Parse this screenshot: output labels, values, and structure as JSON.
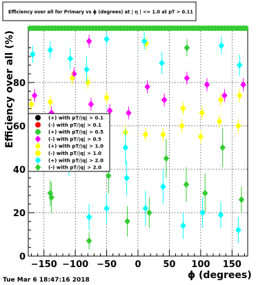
{
  "chart_data": {
    "type": "scatter",
    "title": "Efficiency over all for Primary vs ϕ (degrees) at | η | <= 1.0 at pT > 0.11",
    "xlabel": "ϕ (degrees)",
    "ylabel": "Efficiency over all (%)",
    "xlim": [
      -175,
      175
    ],
    "ylim": [
      0,
      105
    ],
    "x_ticks": [
      -150,
      -100,
      -50,
      0,
      50,
      100,
      150
    ],
    "y_ticks": [
      0,
      20,
      40,
      60,
      80
    ],
    "x_tick_labels": [
      "−150",
      "−100",
      "−50",
      "0",
      "50",
      "100",
      "150"
    ],
    "y_tick_labels": [
      "0",
      "20",
      "40",
      "60",
      "80"
    ],
    "grid": true,
    "legend_position": "middle-left",
    "timestamp": "Tue Mar  6 18:47:16 2018",
    "series": [
      {
        "name": "(+) with pT/|q| > 0.1",
        "color": "#000000",
        "marker": "circle",
        "points": []
      },
      {
        "name": "(-) with pT/|q| > 0.1",
        "color": "#ff0000",
        "marker": "circle",
        "points": []
      },
      {
        "name": "(+) with pT/|q| > 0.5",
        "color": "#33cc33",
        "marker": "circle",
        "points": [
          [
            -172,
            105
          ],
          [
            -167,
            105
          ],
          [
            -162,
            105
          ],
          [
            -157,
            105
          ],
          [
            -152,
            105
          ],
          [
            -147,
            105
          ],
          [
            -142,
            105
          ],
          [
            -137,
            105
          ],
          [
            -132,
            105
          ],
          [
            -127,
            105
          ],
          [
            -122,
            105
          ],
          [
            -117,
            105
          ],
          [
            -112,
            105
          ],
          [
            -107,
            105
          ],
          [
            -102,
            105
          ],
          [
            -97,
            105
          ],
          [
            -92,
            105
          ],
          [
            -87,
            105
          ],
          [
            -82,
            105
          ],
          [
            -77,
            105
          ],
          [
            -72,
            105
          ],
          [
            -67,
            105
          ],
          [
            -62,
            105
          ],
          [
            -57,
            105
          ],
          [
            -52,
            105
          ],
          [
            -47,
            105
          ],
          [
            -42,
            105
          ],
          [
            -37,
            105
          ],
          [
            -32,
            105
          ],
          [
            -27,
            105
          ],
          [
            -22,
            105
          ],
          [
            -17,
            105
          ],
          [
            -12,
            105
          ],
          [
            -7,
            105
          ],
          [
            -2,
            105
          ],
          [
            3,
            105
          ],
          [
            8,
            105
          ],
          [
            13,
            105
          ],
          [
            18,
            105
          ],
          [
            23,
            105
          ],
          [
            28,
            105
          ],
          [
            33,
            105
          ],
          [
            38,
            105
          ],
          [
            43,
            105
          ],
          [
            48,
            105
          ],
          [
            53,
            105
          ],
          [
            58,
            105
          ],
          [
            63,
            105
          ],
          [
            68,
            105
          ],
          [
            73,
            105
          ],
          [
            78,
            105
          ],
          [
            83,
            105
          ],
          [
            88,
            105
          ],
          [
            93,
            105
          ],
          [
            98,
            105
          ],
          [
            103,
            105
          ],
          [
            108,
            105
          ],
          [
            113,
            105
          ],
          [
            118,
            105
          ],
          [
            123,
            105
          ],
          [
            128,
            105
          ],
          [
            133,
            105
          ],
          [
            138,
            105
          ],
          [
            143,
            105
          ],
          [
            148,
            105
          ],
          [
            153,
            105
          ],
          [
            158,
            105
          ],
          [
            163,
            105
          ],
          [
            168,
            105
          ],
          [
            172,
            105
          ]
        ]
      },
      {
        "name": "(-) with pT/|q| > 0.5",
        "color": "#ff00ff",
        "marker": "diamond",
        "points": [
          [
            -165,
            74,
            3
          ],
          [
            -138,
            66,
            3
          ],
          [
            -125,
            59,
            3
          ],
          [
            -102,
            84,
            3
          ],
          [
            -78,
            99,
            3
          ],
          [
            -75,
            70,
            3
          ],
          [
            -45,
            67,
            3
          ],
          [
            -15,
            66,
            3
          ],
          [
            15,
            78,
            3
          ],
          [
            42,
            72,
            3
          ],
          [
            78,
            82,
            3
          ],
          [
            110,
            79,
            3
          ],
          [
            138,
            74,
            3
          ],
          [
            168,
            79,
            3
          ]
        ]
      },
      {
        "name": "(+) with pT/|q| > 1.0",
        "color": "#ffff00",
        "marker": "diamond",
        "points": [
          [
            -170,
            70,
            3
          ],
          [
            -140,
            71,
            3
          ],
          [
            -105,
            82,
            3
          ],
          [
            -80,
            80,
            3
          ],
          [
            -50,
            73,
            3
          ],
          [
            -20,
            57,
            3
          ],
          [
            12,
            56,
            3
          ],
          [
            13,
            98,
            3
          ],
          [
            40,
            56,
            3
          ],
          [
            70,
            60,
            3
          ],
          [
            72,
            68,
            3
          ],
          [
            102,
            66,
            3
          ],
          [
            100,
            55,
            3
          ],
          [
            130,
            62,
            3
          ],
          [
            132,
            72,
            3
          ],
          [
            162,
            74,
            3
          ],
          [
            160,
            60,
            3
          ]
        ]
      },
      {
        "name": "(-) with pT/|q| > 1.0",
        "color": "#ffff00",
        "marker": "circle",
        "points": []
      },
      {
        "name": "(+) with pT/|q| > 2.0",
        "color": "#00ffff",
        "marker": "diamond",
        "points": [
          [
            -168,
            93,
            4
          ],
          [
            -140,
            95,
            4
          ],
          [
            -108,
            91,
            5
          ],
          [
            -82,
            86,
            6
          ],
          [
            -50,
            100,
            3
          ],
          [
            -50,
            22,
            7
          ],
          [
            -20,
            50,
            8
          ],
          [
            -18,
            36,
            8
          ],
          [
            10,
            99,
            4
          ],
          [
            12,
            22,
            8
          ],
          [
            38,
            89,
            5
          ],
          [
            40,
            32,
            8
          ],
          [
            72,
            14,
            6
          ],
          [
            103,
            20,
            7
          ],
          [
            132,
            19,
            6
          ],
          [
            133,
            97,
            4
          ],
          [
            162,
            88,
            5
          ],
          [
            160,
            12,
            6
          ],
          [
            -78,
            18,
            6
          ],
          [
            -110,
            45,
            8
          ]
        ]
      },
      {
        "name": "(-) with pT/|q| > 2.0",
        "color": "#33cc33",
        "marker": "diamond",
        "points": [
          [
            -165,
            48,
            8
          ],
          [
            -138,
            27,
            7
          ],
          [
            -112,
            50,
            8
          ],
          [
            -78,
            7,
            4
          ],
          [
            -47,
            37,
            8
          ],
          [
            -17,
            16,
            7
          ],
          [
            18,
            20,
            7
          ],
          [
            45,
            45,
            9
          ],
          [
            77,
            33,
            8
          ],
          [
            107,
            29,
            9
          ],
          [
            135,
            50,
            9
          ],
          [
            165,
            26,
            6
          ],
          [
            78,
            96,
            4
          ],
          [
            -140,
            29,
            6
          ]
        ]
      }
    ]
  }
}
